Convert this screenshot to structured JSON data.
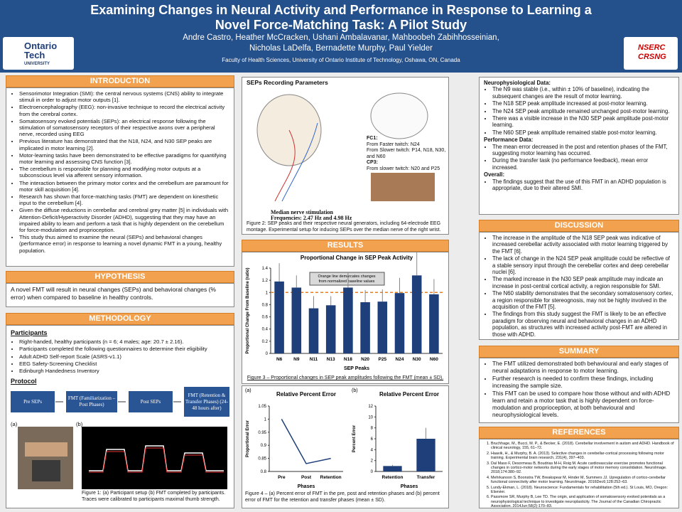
{
  "header": {
    "title": "Examining Changes in Neural Activity and Performance in Response to Learning a Novel Force-Matching Task: A Pilot Study",
    "authors": [
      "Andre Castro, Heather McCracken, Ushani Ambalavanar, Mahboobeh Zabihhosseinian,",
      "Nicholas LaDelfa, Bernadette Murphy, Paul Yielder"
    ],
    "affiliation": "Faculty of Health Sciences, University of Ontario Institute of Technology, Oshawa, ON, Canada",
    "logo_left": [
      "Ontario",
      "Tech",
      "UNIVERSITY"
    ],
    "logo_right": [
      "NSERC",
      "CRSNG"
    ]
  },
  "introduction": {
    "heading": "INTRODUCTION",
    "items": [
      "Sensorimotor Integration (SMI): the central nervous systems (CNS) ability to integrate stimuli in order to adjust motor outputs [1].",
      "Electroencephalography (EEG): non-invasive technique to record the electrical activity from the cerebral cortex.",
      "Somatosensory evoked potentials (SEPs): an electrical response following the stimulation of somatosensory receptors of their respective axons over a peripheral nerve, recorded using EEG",
      "Previous literature has demonstrated that the N18, N24, and N30 SEP peaks are implicated in motor learning [2].",
      "Motor-learning tasks have been demonstrated to be effective paradigms for quantifying motor learning and assessing CNS function [3].",
      "The cerebellum is responsible for planning and modifying motor outputs at a subconscious level via afferent sensory information.",
      "The interaction between the primary motor cortex and the cerebellum are paramount for motor skill acquisition [4].",
      "Research has shown that force-matching tasks (FMT) are dependent on kinesthetic input to the cerebellum [4].",
      "Given the diffuse reductions in cerebellar and cerebral grey matter [5] in individuals with Attention-Deficit/Hyperactivity Disorder (ADHD), suggesting that they may have an impaired ability to learn and perform a task that is highly dependent on the cerebellum for force-modulation and proprioception.",
      "This study thus aimed to examine the neural (SEPs) and behavioral changes (performance error) in response to learning a novel dynamic FMT in a young, healthy population."
    ]
  },
  "hypothesis": {
    "heading": "HYPOTHESIS",
    "text": "A novel FMT will result in neural changes (SEPs) and behavioral changes (% error) when compared to baseline in healthy controls."
  },
  "methodology": {
    "heading": "METHODOLOGY",
    "participants_heading": "Participants",
    "participants": [
      "Right-handed, healthy participants (n = 6; 4 males; age: 20.7 ± 2.16).",
      "Participants completed the following questionnaires to determine their eligibility",
      "Adult ADHD Self-report Scale (ASRS-v1.1)",
      "EEG Safety-Screening Checklist",
      "Edinburgh Handedness Inventory"
    ],
    "protocol_heading": "Protocol",
    "protocol_steps": [
      "Pre SEPs",
      "FMT (Familiarization – Post Phases)",
      "Post SEPs",
      "FMT (Retention & Transfer Phases) (24-48 hours after)"
    ],
    "figure1_labels": [
      "(a)",
      "(b)"
    ],
    "figure1_caption": "Figure 1: (a) Participant setup (b) FMT completed by participants. Traces were calibrated to participants maximal thumb strength."
  },
  "sep_figure": {
    "heading": "SEPs Recording Parameters",
    "notes": [
      "FC1:",
      "From Faster twitch: N24",
      "From Slower twitch: P14, N18, N30, and N60",
      "CP3:",
      "From slower twitch: N20 and P25"
    ],
    "stimulation": "Median nerve stimulation",
    "frequencies": "Frequencies: 2.47 Hz and 4.98 Hz",
    "caption": "Figure 2: SEP peaks and their respective neural generators, including 64-electrode EEG montage. Experimental setup for inducing SEPs over the median nerve of the right wrist."
  },
  "results": {
    "heading": "RESULTS",
    "figure3_caption": "Figure 3 – Proportional changes in SEP peak amplitudes following the FMT (mean ± SD).",
    "figure4_caption": "Figure 4 – (a) Percent error of FMT in the pre, post and retention phases and (b) percent error of FMT for the retention and transfer phases (mean ± SD)."
  },
  "chart_data": [
    {
      "type": "bar",
      "title": "Proportional Change in SEP Peak Activity",
      "annotation": "Orange line demarcates changes from normalized baseline values",
      "x_label": "SEP Peaks",
      "y_label": "Proportional Change From Baseline (ratio)",
      "categories": [
        "N6",
        "N9",
        "N11",
        "N13",
        "N18",
        "N20",
        "P25",
        "N24",
        "N30",
        "N60"
      ],
      "values": [
        1.18,
        1.08,
        0.74,
        0.79,
        1.08,
        0.84,
        0.85,
        0.99,
        1.28,
        0.97
      ],
      "errors": [
        0.3,
        0.2,
        0.2,
        0.15,
        0.25,
        0.2,
        0.2,
        0.25,
        0.4,
        0.25
      ],
      "color": "#1f3f7a",
      "ylim": [
        0,
        1.4
      ],
      "yticks": [
        0,
        0.2,
        0.4,
        0.6,
        0.8,
        1,
        1.2,
        1.4
      ],
      "reference_line": 1,
      "reference_color": "#e67e22"
    },
    {
      "type": "line",
      "panel_label": "(a)",
      "title": "Relative Percent Error",
      "x_label": "Phases",
      "y_label": "Proportional Error",
      "categories": [
        "Pre",
        "Post",
        "Retention"
      ],
      "values": [
        1,
        0.83,
        0.85
      ],
      "color": "#1f3f7a",
      "ylim": [
        0.8,
        1.05
      ],
      "yticks": [
        0.8,
        0.85,
        0.9,
        0.95,
        1,
        1.05
      ]
    },
    {
      "type": "bar",
      "panel_label": "(b)",
      "title": "Relative Percent Error",
      "x_label": "Phases",
      "y_label": "Percent Error",
      "categories": [
        "Retention",
        "Transfer"
      ],
      "values": [
        1,
        6
      ],
      "errors": [
        0.2,
        2
      ],
      "color": "#1f3f7a",
      "ylim": [
        0,
        12
      ],
      "yticks": [
        0,
        2,
        4,
        6,
        8,
        10,
        12
      ]
    }
  ],
  "findings": {
    "neuro_heading": "Neurophysiological Data:",
    "neuro_items": [
      "The N9 was stable (i.e., within ± 10% of baseline), indicating the subsequent changes are the result of motor learning.",
      "The N18 SEP peak amplitude increased at post-motor learning.",
      "The N24 SEP peak amplitude remained unchanged post-motor learning.",
      "There was a visible increase in the N30 SEP peak amplitude post-motor learning.",
      "The N60 SEP peak amplitude remained stable post-motor learning."
    ],
    "performance_heading": "Performance Data:",
    "performance_items": [
      "The mean error decreased in the post and retention phases of the FMT, suggesting motor learning has occurred.",
      "During the transfer task (no performance feedback), mean error increased."
    ],
    "overall_heading": "Overall:",
    "overall_items": [
      "The findings suggest that the use of this FMT in an ADHD population is appropriate, due to their altered SMI."
    ]
  },
  "discussion": {
    "heading": "DISCUSSION",
    "items": [
      "The increase in the amplitude of the N18 SEP peak was indicative of increased cerebellar activity associated with motor learning triggered by the FMT [6].",
      "The lack of change in the N24 SEP peak amplitude could be reflective of a stable sensory input through the cerebellar cortex and deep cerebellar nuclei [6].",
      "The marked increase in the N30 SEP peak amplitude may indicate an increase in post-central cortical activity, a region responsible for SMI.",
      "The N60 stability demonstrates that the secondary somatosensory cortex, a region responsible for stereognosis, may not be highly involved in the acquisition of the FMT [5].",
      "The findings from this study suggest the FMT is likely to be an effective paradigm for observing neural and behavioral changes in an ADHD population, as structures with increased activity post-FMT are altered in those with ADHD."
    ]
  },
  "summary": {
    "heading": "SUMMARY",
    "items": [
      "The FMT utilized demonstrated both behavioural and early stages of neural adaptations in response to motor learning.",
      "Further research is needed to confirm these findings, including increasing the sample size.",
      "This FMT can be used to compare how those without and with ADHD learn and retain a motor task that is highly dependent on force-modulation and proprioception, at both behavioural and neurophysiological levels."
    ]
  },
  "references": {
    "heading": "REFERENCES",
    "items": [
      "Bruchhage, M., Bucci, M. P., & Becker, E. (2018). Cerebellar involvement in autism and ADHD. Handbook of clinical neurology, 155, 61–72.",
      "Haavik, H., & Murphy, B. A. (2013). Selective changes in cerebellar-cortical processing following motor training. Experimental brain research, 231(4), 397–403.",
      "Dal Maso F, Desormeau B, Boudrias M-H, Roig M. Acute cardiovascular exercise promotes functional changes in cortico-motor networks during the early stages of motor memory consolidation. NeuroImage. 2018;174:380–92.",
      "Mehrkanoon S, Boonstra TW, Breakspear M, Hinder M, Summers JJ. Upregulation of cortico-cerebellar functional connectivity after motor learning. NeuroImage. 2016Dec6;128:252–63.",
      "Lundy-Ekman, L. (2018). Neuroscience: Fundamentals for rehabilitation (5th ed.). St Louis, MO, Oregon: Elsevier.",
      "Passmore SR, Murphy B, Lee TD. The origin, and application of somatosensory evoked potentials as a neurophysiological technique to investigate neuroplasticity. The Journal of the Canadian Chiropractic Association. 2014Jun;58(2):170–83."
    ]
  }
}
